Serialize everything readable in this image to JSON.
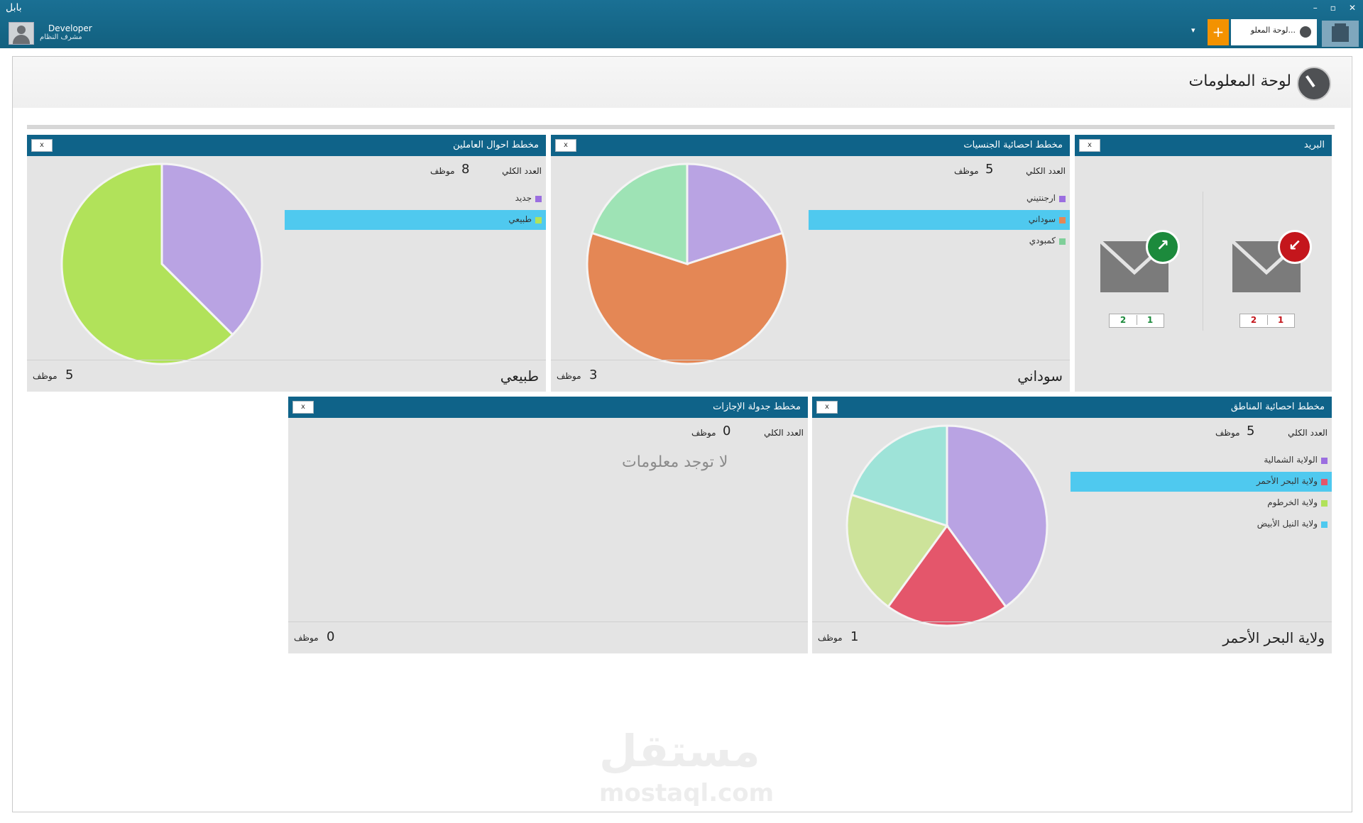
{
  "app": {
    "title": "بابل",
    "window_controls": [
      "–",
      "▫",
      "✕"
    ]
  },
  "user": {
    "name": "Developer",
    "role": "مشرف النظام"
  },
  "tabs": {
    "active_label": "لوحة المعلو...",
    "add_label": "+",
    "dropdown": "▾"
  },
  "page": {
    "title": "لوحة المعلومات"
  },
  "mail_panel": {
    "title": "البريد",
    "close_label": "x",
    "inbox": {
      "icon": "incoming-arrow-icon",
      "badge": "↙",
      "counts": [
        "1",
        "2"
      ]
    },
    "outbox": {
      "icon": "outgoing-arrow-icon",
      "badge": "↗",
      "counts": [
        "1",
        "2"
      ]
    }
  },
  "nationality_panel": {
    "title": "مخطط احصائية الجنسيات",
    "close_label": "x",
    "total_label": "العدد الكلي",
    "total_value": "5",
    "total_unit": "موظف",
    "legend": [
      "ارجنتيني",
      "سوداني",
      "كمبودي"
    ],
    "selected": "سوداني",
    "footer_value": "3",
    "footer_unit": "موظف"
  },
  "status_panel": {
    "title": "مخطط احوال العاملين",
    "close_label": "x",
    "total_label": "العدد الكلي",
    "total_value": "8",
    "total_unit": "موظف",
    "legend": [
      "جديد",
      "طبيعي"
    ],
    "selected": "طبيعي",
    "footer_value": "5",
    "footer_unit": "موظف"
  },
  "regions_panel": {
    "title": "مخطط احصائية المناطق",
    "close_label": "x",
    "total_label": "العدد الكلي",
    "total_value": "5",
    "total_unit": "موظف",
    "legend": [
      "الولاية الشمالية",
      "ولاية البحر الأحمر",
      "ولاية الخرطوم",
      "ولاية النيل الأبيض"
    ],
    "selected": "ولاية البحر الأحمر",
    "footer_value": "1",
    "footer_unit": "موظف"
  },
  "leave_panel": {
    "title": "مخطط جدولة الإجازات",
    "close_label": "x",
    "total_label": "العدد الكلي",
    "total_value": "0",
    "total_unit": "موظف",
    "no_data": "لا توجد معلومات",
    "footer_value": "0",
    "footer_unit": "موظف"
  },
  "watermark": {
    "arabic": "مستقل",
    "latin": "mostaql.com"
  },
  "colors": {
    "header": "#0f6389",
    "panel_bg": "#e4e4e4",
    "selected": "#4fc9ef",
    "accent": "#f39200"
  },
  "chart_data": [
    {
      "type": "pie",
      "title": "مخطط احصائية الجنسيات",
      "categories": [
        "ارجنتيني",
        "سوداني",
        "كمبودي"
      ],
      "values": [
        1,
        3,
        1
      ],
      "colors": [
        "#b9a3e3",
        "#e48755",
        "#9ee3b5"
      ]
    },
    {
      "type": "pie",
      "title": "مخطط احوال العاملين",
      "categories": [
        "جديد",
        "طبيعي"
      ],
      "values": [
        3,
        5
      ],
      "colors": [
        "#b9a3e3",
        "#b1e25a"
      ]
    },
    {
      "type": "pie",
      "title": "مخطط احصائية المناطق",
      "categories": [
        "الولاية الشمالية",
        "ولاية البحر الأحمر",
        "ولاية الخرطوم",
        "ولاية النيل الأبيض"
      ],
      "values": [
        2,
        1,
        1,
        1
      ],
      "colors": [
        "#b9a3e3",
        "#e4566b",
        "#cde39a",
        "#9ee3d8"
      ]
    }
  ]
}
